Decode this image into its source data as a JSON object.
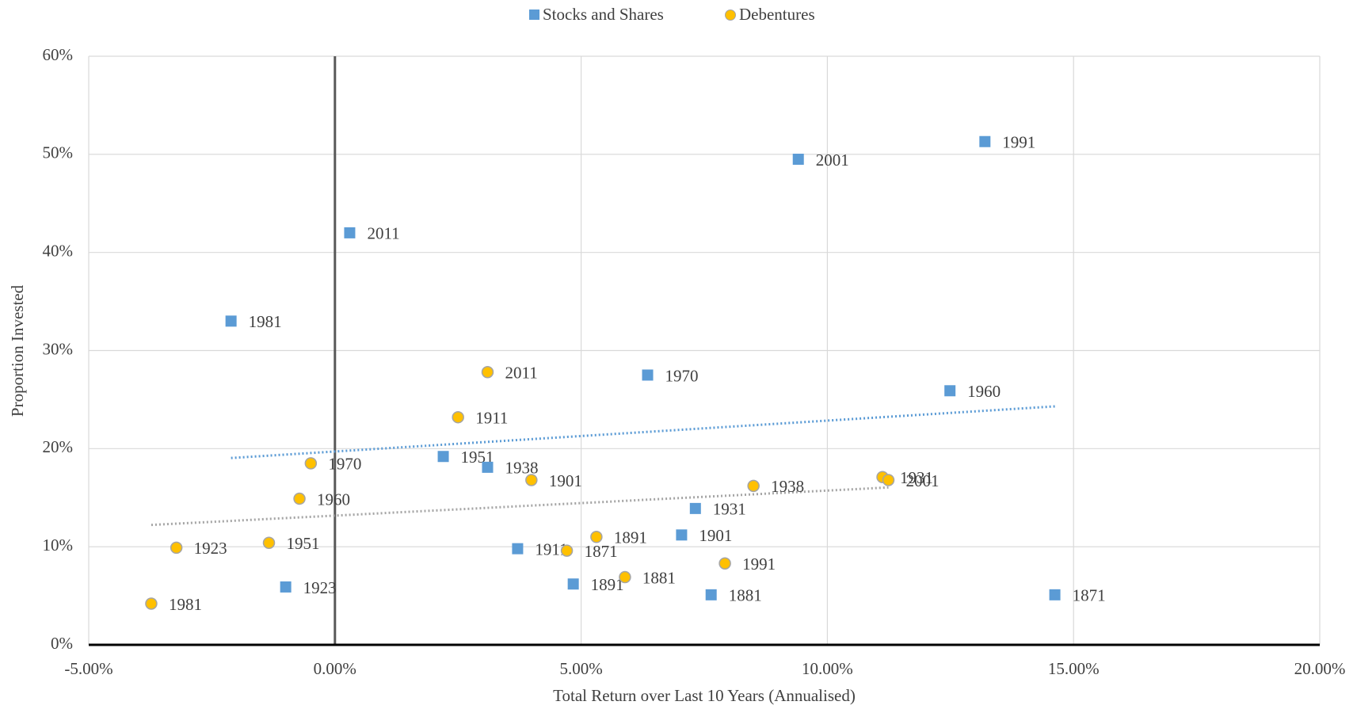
{
  "chart_data": {
    "type": "scatter",
    "x_label": "Total Return over Last 10 Years (Annualised)",
    "y_label": "Proportion Invested",
    "xlim": [
      -5,
      20
    ],
    "xticks": [
      {
        "value": -5,
        "label": "-5.00%"
      },
      {
        "value": 0,
        "label": "0.00%"
      },
      {
        "value": 5,
        "label": "5.00%"
      },
      {
        "value": 10,
        "label": "10.00%"
      },
      {
        "value": 15,
        "label": "15.00%"
      },
      {
        "value": 20,
        "label": "20.00%"
      }
    ],
    "ylim": [
      0,
      60
    ],
    "yticks": [
      {
        "value": 0,
        "label": "0%"
      },
      {
        "value": 10,
        "label": "10%"
      },
      {
        "value": 20,
        "label": "20%"
      },
      {
        "value": 30,
        "label": "30%"
      },
      {
        "value": 40,
        "label": "40%"
      },
      {
        "value": 50,
        "label": "50%"
      },
      {
        "value": 60,
        "label": "60%"
      }
    ],
    "grid": true,
    "legend": "top",
    "trendline": true,
    "series": [
      {
        "name": "Stocks and Shares",
        "color": "#5b9bd5",
        "marker": "square",
        "labels": [
          "2011",
          "1981",
          "2001",
          "1991",
          "1970",
          "1960",
          "1951",
          "1938",
          "1931",
          "1901",
          "1911",
          "1923",
          "1891",
          "1881",
          "1871"
        ],
        "x": [
          0.3,
          -2.11,
          9.41,
          13.2,
          6.35,
          12.49,
          2.2,
          3.1,
          7.32,
          7.04,
          3.71,
          -1.0,
          4.84,
          7.64,
          14.62
        ],
        "values": [
          42.0,
          33.0,
          49.5,
          51.3,
          27.5,
          25.9,
          19.2,
          18.1,
          13.9,
          11.2,
          9.8,
          5.9,
          6.2,
          5.1,
          5.1
        ]
      },
      {
        "name": "Debentures",
        "color": "#ffc000",
        "marker": "circle",
        "labels": [
          "2011",
          "1911",
          "1970",
          "1901",
          "1960",
          "1938",
          "1931",
          "2001",
          "1923",
          "1951",
          "1891",
          "1871",
          "1881",
          "1991",
          "1981"
        ],
        "x": [
          3.1,
          2.5,
          -0.49,
          3.99,
          -0.72,
          8.5,
          11.12,
          11.24,
          -3.22,
          -1.34,
          5.31,
          4.71,
          5.89,
          7.92,
          -3.73
        ],
        "values": [
          27.8,
          23.2,
          18.5,
          16.8,
          14.9,
          16.2,
          17.1,
          16.8,
          9.9,
          10.4,
          11.0,
          9.6,
          6.9,
          8.3,
          4.2
        ]
      }
    ]
  }
}
